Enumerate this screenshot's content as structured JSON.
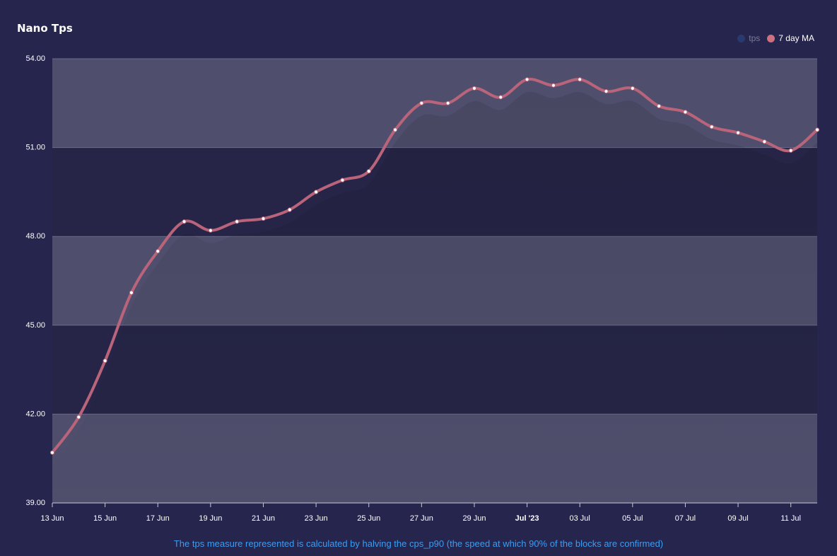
{
  "title": "Nano Tps",
  "footnote": "The tps measure represented is calculated by halving the cps_p90 (the speed at which 90% of the blocks are confirmed)",
  "colors": {
    "background": "#26254e",
    "band_light": "#4f4f6d",
    "band_dark": "#262547",
    "ma_line": "#b9647a",
    "tps_dot": "#2b3a6e",
    "footnote": "#3d9cf0",
    "legend_tps_text": "#7a7a9a",
    "legend_ma_text": "#ffffff"
  },
  "legend": [
    {
      "label": "tps",
      "color": "#2b3a6e",
      "text_color": "#7a7a9a",
      "icon": "circle-icon"
    },
    {
      "label": "7 day MA",
      "color": "#d0707f",
      "text_color": "#ffffff",
      "icon": "circle-icon"
    }
  ],
  "chart_data": {
    "type": "line",
    "title": "Nano Tps",
    "xlabel": "",
    "ylabel": "",
    "ylim": [
      39,
      54
    ],
    "yticks": [
      "39.00",
      "42.00",
      "45.00",
      "48.00",
      "51.00",
      "54.00"
    ],
    "x_start": "2023-06-13",
    "x_end": "2023-07-12",
    "xticks": [
      {
        "label": "13 Jun",
        "date": "2023-06-13",
        "bold": false
      },
      {
        "label": "15 Jun",
        "date": "2023-06-15",
        "bold": false
      },
      {
        "label": "17 Jun",
        "date": "2023-06-17",
        "bold": false
      },
      {
        "label": "19 Jun",
        "date": "2023-06-19",
        "bold": false
      },
      {
        "label": "21 Jun",
        "date": "2023-06-21",
        "bold": false
      },
      {
        "label": "23 Jun",
        "date": "2023-06-23",
        "bold": false
      },
      {
        "label": "25 Jun",
        "date": "2023-06-25",
        "bold": false
      },
      {
        "label": "27 Jun",
        "date": "2023-06-27",
        "bold": false
      },
      {
        "label": "29 Jun",
        "date": "2023-06-29",
        "bold": false
      },
      {
        "label": "Jul '23",
        "date": "2023-07-01",
        "bold": true
      },
      {
        "label": "03 Jul",
        "date": "2023-07-03",
        "bold": false
      },
      {
        "label": "05 Jul",
        "date": "2023-07-05",
        "bold": false
      },
      {
        "label": "07 Jul",
        "date": "2023-07-07",
        "bold": false
      },
      {
        "label": "09 Jul",
        "date": "2023-07-09",
        "bold": false
      },
      {
        "label": "11 Jul",
        "date": "2023-07-11",
        "bold": false
      }
    ],
    "grid": "horizontal bands",
    "legend_position": "top-right",
    "series": [
      {
        "name": "7 day MA",
        "color": "#b9647a",
        "x": [
          "2023-06-13",
          "2023-06-14",
          "2023-06-15",
          "2023-06-16",
          "2023-06-17",
          "2023-06-18",
          "2023-06-19",
          "2023-06-20",
          "2023-06-21",
          "2023-06-22",
          "2023-06-23",
          "2023-06-24",
          "2023-06-25",
          "2023-06-26",
          "2023-06-27",
          "2023-06-28",
          "2023-06-29",
          "2023-06-30",
          "2023-07-01",
          "2023-07-02",
          "2023-07-03",
          "2023-07-04",
          "2023-07-05",
          "2023-07-06",
          "2023-07-07",
          "2023-07-08",
          "2023-07-09",
          "2023-07-10",
          "2023-07-11",
          "2023-07-12"
        ],
        "values": [
          40.7,
          41.9,
          43.8,
          46.1,
          47.5,
          48.5,
          48.2,
          48.5,
          48.6,
          48.9,
          49.5,
          49.9,
          50.2,
          51.6,
          52.5,
          52.5,
          53.0,
          52.7,
          53.3,
          53.1,
          53.3,
          52.9,
          53.0,
          52.4,
          52.2,
          51.7,
          51.5,
          51.2,
          50.9,
          51.6
        ]
      }
    ]
  }
}
